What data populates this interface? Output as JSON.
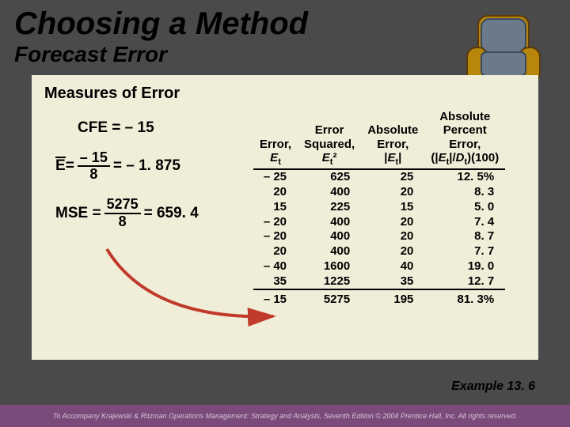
{
  "title": "Choosing a Method",
  "subtitle": "Forecast Error",
  "panel": {
    "heading": "Measures of Error",
    "cfe": {
      "label": "CFE = – 15"
    },
    "ebar": {
      "lhs": "E",
      "eq1": " = ",
      "num": "– 15",
      "den": "8",
      "eq2": " = – 1. 875"
    },
    "mse": {
      "lhs": "MSE = ",
      "num": "5275",
      "den": "8",
      "rhs": " = 659. 4"
    }
  },
  "table": {
    "headers": {
      "c1a": "Error,",
      "c1b": "Et",
      "c2a": "Error",
      "c2b": "Squared,",
      "c2c": "Et²",
      "c3a": "Absolute",
      "c3b": "Error,",
      "c3c": "|Et|",
      "c4a": "Absolute",
      "c4b": "Percent",
      "c4c": "Error,",
      "c4d": "(|Et|/Dt)(100)"
    },
    "rows": [
      {
        "e": "– 25",
        "sq": "625",
        "abs": "25",
        "pct": "12. 5%"
      },
      {
        "e": "20",
        "sq": "400",
        "abs": "20",
        "pct": "8. 3"
      },
      {
        "e": "15",
        "sq": "225",
        "abs": "15",
        "pct": "5. 0"
      },
      {
        "e": "– 20",
        "sq": "400",
        "abs": "20",
        "pct": "7. 4"
      },
      {
        "e": "– 20",
        "sq": "400",
        "abs": "20",
        "pct": "8. 7"
      },
      {
        "e": "20",
        "sq": "400",
        "abs": "20",
        "pct": "7. 7"
      },
      {
        "e": "– 40",
        "sq": "1600",
        "abs": "40",
        "pct": "19. 0"
      },
      {
        "e": "35",
        "sq": "1225",
        "abs": "35",
        "pct": "12. 7"
      }
    ],
    "totals": {
      "e": "– 15",
      "sq": "5275",
      "abs": "195",
      "pct": "81. 3%"
    }
  },
  "example_label": "Example 13. 6",
  "footer": "To Accompany Krajewski & Ritzman Operations Management: Strategy and Analysis, Seventh Edition © 2004 Prentice Hall, Inc. All rights reserved.",
  "colors": {
    "arrow": "#c0392b",
    "chair_wood": "#b8860b",
    "chair_cushion": "#6a7a8a"
  }
}
